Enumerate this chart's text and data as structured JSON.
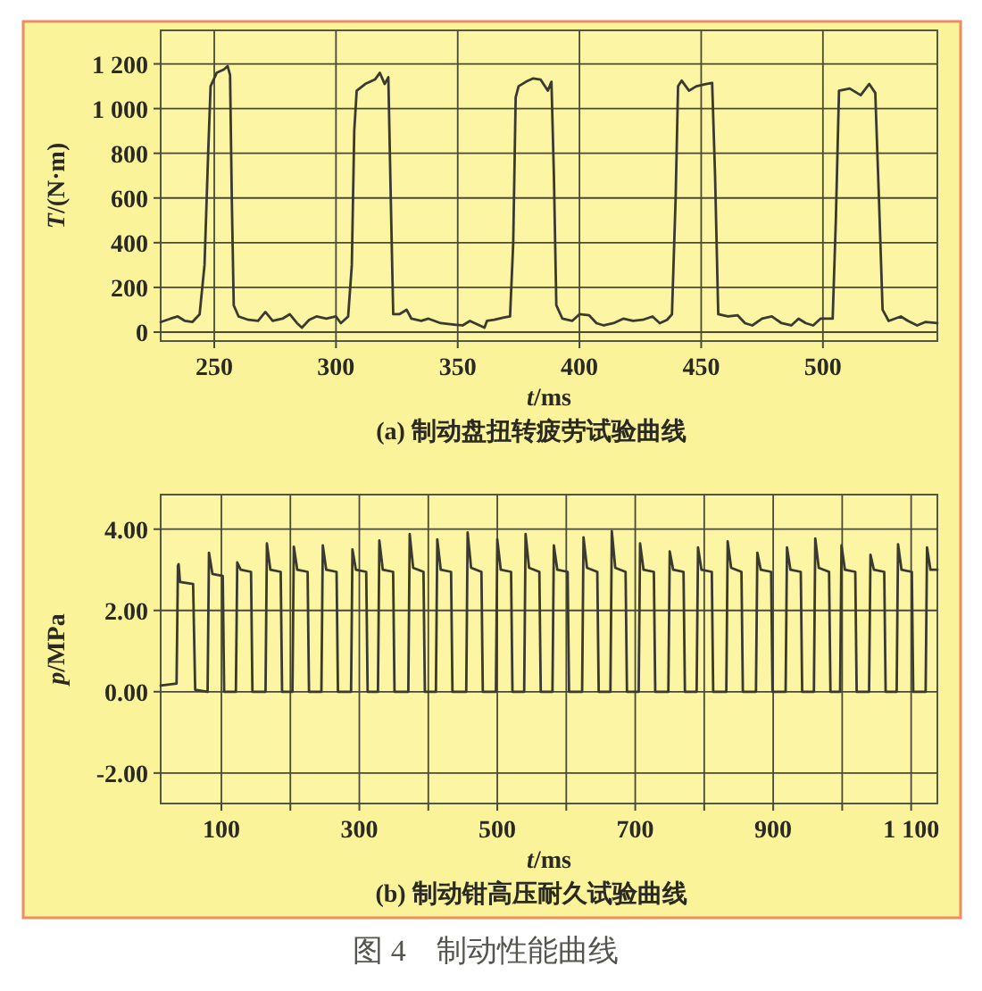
{
  "chart_data": [
    {
      "type": "line",
      "xlabel": "*t*/ms",
      "ylabel": "*T*/(N·m)",
      "annotations": [
        "(a) 制动盘扭转疲劳试验曲线"
      ],
      "xlim": [
        228,
        547
      ],
      "ylim": [
        -40,
        1350
      ],
      "xticks": [
        250,
        300,
        350,
        400,
        450,
        500
      ],
      "yticks": [
        0,
        200,
        400,
        600,
        800,
        {
          "value": 1000,
          "label": "1 000"
        },
        {
          "value": 1200,
          "label": "1 200"
        }
      ],
      "grid": true,
      "series": [
        {
          "color": "#3a3a30",
          "x": [
            228,
            232,
            235,
            238,
            241,
            244,
            246,
            247.5,
            248.5,
            251,
            254,
            255.5,
            256.5,
            257.2,
            258,
            260,
            264,
            268,
            271,
            274,
            278,
            281,
            284,
            286,
            289,
            292,
            296,
            300,
            302,
            305,
            306.5,
            307.5,
            308.5,
            312,
            316,
            318,
            320,
            321.5,
            322.5,
            323.5,
            326,
            329,
            331,
            335,
            338,
            343,
            347,
            352,
            355,
            358,
            361,
            362,
            365,
            369,
            371.5,
            372.8,
            373.8,
            375,
            378,
            381,
            384,
            387,
            388.5,
            389.5,
            390.5,
            393,
            397,
            400,
            404,
            407,
            410,
            414,
            418,
            422,
            426,
            430,
            433,
            436,
            438,
            439.5,
            440.5,
            442,
            445,
            448,
            452,
            454.5,
            455.7,
            457,
            461,
            465,
            468,
            471,
            475,
            479,
            483,
            487,
            490,
            493,
            496,
            499,
            502,
            504,
            505.3,
            506.6,
            511,
            515.5,
            519,
            521.5,
            523,
            524.5,
            527,
            532,
            535,
            538.7,
            542,
            547
          ],
          "values": [
            45,
            60,
            70,
            50,
            45,
            80,
            300,
            800,
            1100,
            1160,
            1175,
            1190,
            1150,
            600,
            120,
            70,
            55,
            50,
            90,
            50,
            60,
            80,
            40,
            20,
            55,
            70,
            60,
            70,
            40,
            70,
            300,
            900,
            1080,
            1110,
            1130,
            1160,
            1110,
            1140,
            600,
            80,
            80,
            100,
            60,
            50,
            60,
            40,
            35,
            30,
            50,
            35,
            20,
            50,
            55,
            65,
            70,
            400,
            1050,
            1100,
            1120,
            1135,
            1130,
            1080,
            1120,
            700,
            120,
            60,
            50,
            80,
            75,
            40,
            30,
            40,
            60,
            50,
            55,
            70,
            40,
            55,
            80,
            600,
            1100,
            1125,
            1080,
            1100,
            1110,
            1115,
            700,
            80,
            70,
            75,
            40,
            30,
            60,
            70,
            40,
            30,
            60,
            40,
            30,
            60,
            60,
            60,
            500,
            1080,
            1090,
            1060,
            1110,
            1070,
            600,
            100,
            50,
            70,
            50,
            30,
            45,
            40
          ]
        }
      ]
    },
    {
      "type": "line",
      "xlabel": "*t*/ms",
      "ylabel": "*p*/MPa",
      "annotations": [
        "(b) 制动钳高压耐久试验曲线",
        "图 4　制动性能曲线"
      ],
      "xlim": [
        12,
        1138
      ],
      "ylim": [
        -2.75,
        4.85
      ],
      "xticks": [
        100,
        {
          "value": 200,
          "label": null
        },
        300,
        {
          "value": 400,
          "label": null
        },
        500,
        {
          "value": 600,
          "label": null
        },
        700,
        {
          "value": 800,
          "label": null
        },
        900,
        {
          "value": 1000,
          "label": null
        },
        {
          "value": 1100,
          "label": "1 100"
        }
      ],
      "yticks": [
        {
          "value": -2,
          "label": "-2.00"
        },
        {
          "value": 0,
          "label": "0.00"
        },
        {
          "value": 2,
          "label": "2.00"
        },
        {
          "value": 4,
          "label": "4.00"
        }
      ],
      "grid": true,
      "series": [
        {
          "color": "#3a3a30",
          "x": [
            12,
            35,
            37,
            38,
            40,
            59,
            62,
            80,
            82,
            87,
            102,
            104,
            121,
            123,
            128,
            143,
            145,
            164,
            166,
            171,
            186,
            188,
            203,
            205,
            210,
            225,
            227,
            245,
            247,
            252,
            267,
            269,
            288,
            290,
            295,
            310,
            312,
            327,
            329,
            334,
            349,
            351,
            371,
            373,
            378,
            393,
            395,
            411,
            413,
            418,
            433,
            435,
            455,
            457,
            462,
            477,
            479,
            498,
            500,
            505,
            520,
            522,
            539,
            541,
            546,
            561,
            563,
            580,
            582,
            587,
            602,
            604,
            623,
            625,
            630,
            645,
            647,
            664,
            666,
            671,
            686,
            688,
            705,
            707,
            712,
            727,
            729,
            748,
            750,
            755,
            770,
            772,
            789,
            791,
            796,
            811,
            813,
            832,
            834,
            839,
            854,
            856,
            875,
            877,
            882,
            897,
            899,
            918,
            920,
            925,
            940,
            942,
            959,
            961,
            966,
            981,
            983,
            997,
            999,
            1004,
            1019,
            1021,
            1039,
            1041,
            1046,
            1061,
            1063,
            1079,
            1081,
            1086,
            1101,
            1103,
            1121,
            1123,
            1128,
            1138
          ],
          "values": [
            0.15,
            0.2,
            3.1,
            3.14,
            2.7,
            2.65,
            0.05,
            0,
            3.42,
            2.9,
            2.85,
            0,
            0,
            3.18,
            3.0,
            2.95,
            0,
            0,
            3.65,
            3.0,
            2.95,
            0,
            0,
            3.57,
            3.0,
            2.95,
            0,
            0,
            3.6,
            3.0,
            2.95,
            0,
            0,
            3.5,
            3.0,
            2.95,
            0,
            0,
            3.72,
            3.0,
            2.95,
            0,
            0,
            3.88,
            3.05,
            2.95,
            0,
            0,
            3.75,
            3.0,
            2.95,
            0,
            0,
            3.92,
            3.05,
            2.95,
            0,
            0,
            3.75,
            3.0,
            2.95,
            0,
            0,
            3.88,
            3.05,
            2.95,
            0,
            0,
            3.6,
            3.0,
            2.95,
            0,
            0,
            3.8,
            3.05,
            2.95,
            0,
            0,
            3.95,
            3.05,
            2.95,
            0,
            0,
            3.65,
            3.0,
            2.95,
            0,
            0,
            3.45,
            3.0,
            2.95,
            0,
            0,
            3.55,
            3.0,
            2.95,
            0,
            0,
            3.7,
            3.05,
            2.95,
            0,
            0,
            3.42,
            3.0,
            2.95,
            0,
            0,
            3.55,
            3.0,
            2.95,
            0,
            0,
            3.77,
            3.05,
            2.95,
            0,
            0,
            3.6,
            3.0,
            2.95,
            0,
            0,
            3.37,
            3.0,
            2.95,
            0,
            0,
            3.63,
            3.0,
            2.95,
            0,
            0,
            3.55,
            3.0,
            3.0
          ]
        }
      ]
    }
  ]
}
